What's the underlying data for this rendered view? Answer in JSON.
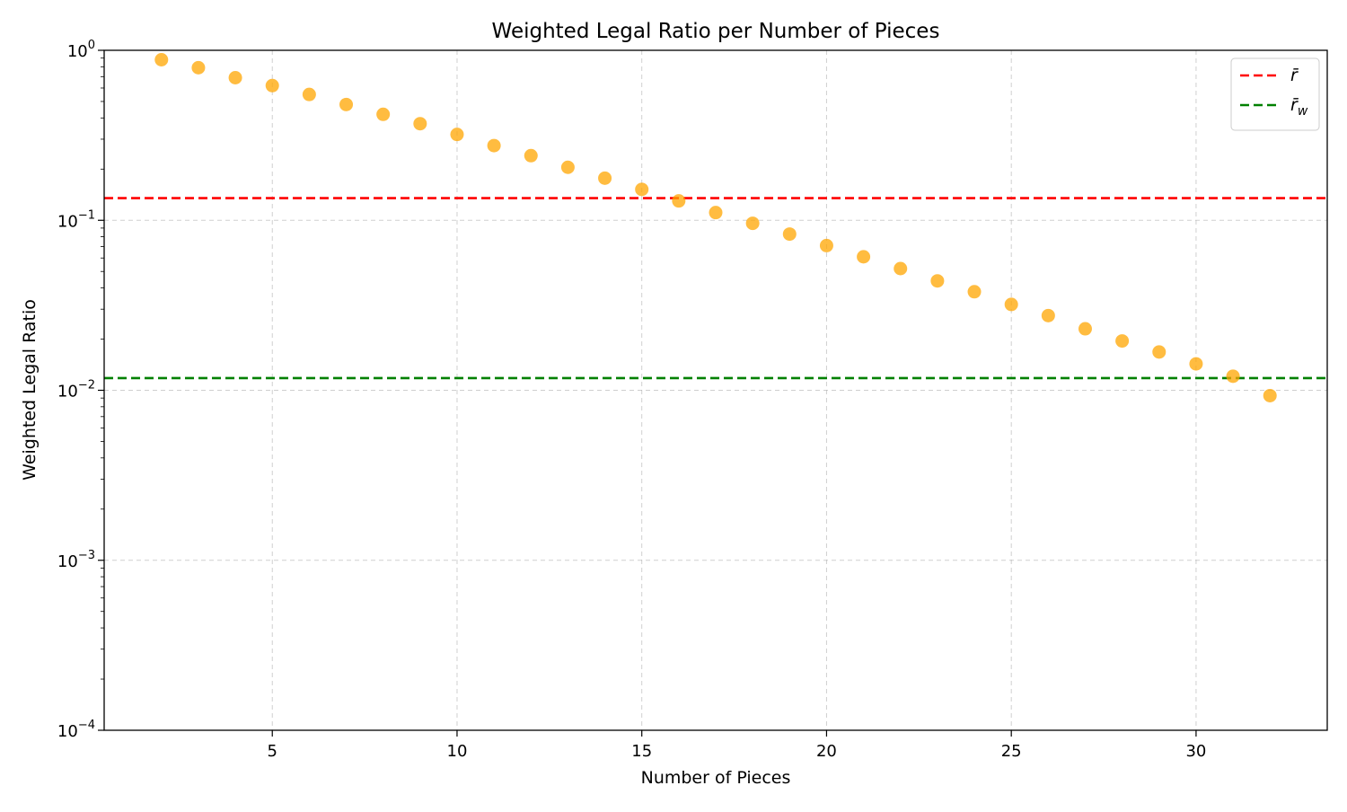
{
  "chart_data": {
    "type": "scatter",
    "title": "Weighted Legal Ratio per Number of Pieces",
    "xlabel": "Number of Pieces",
    "ylabel": "Weighted Legal Ratio",
    "x_scale": "linear",
    "y_scale": "log",
    "xlim": [
      0.45,
      33.55
    ],
    "ylim": [
      0.0001,
      1
    ],
    "x_ticks": [
      5,
      10,
      15,
      20,
      25,
      30
    ],
    "y_ticks": [
      {
        "value": 0.0001,
        "base": "10",
        "exp": "−4"
      },
      {
        "value": 0.001,
        "base": "10",
        "exp": "−3"
      },
      {
        "value": 0.01,
        "base": "10",
        "exp": "−2"
      },
      {
        "value": 0.1,
        "base": "10",
        "exp": "−1"
      },
      {
        "value": 1,
        "base": "10",
        "exp": "0"
      }
    ],
    "grid": true,
    "legend_position": "top-right",
    "point_color": "#ffa500",
    "points": [
      {
        "x": 2,
        "y": 0.88
      },
      {
        "x": 3,
        "y": 0.79
      },
      {
        "x": 4,
        "y": 0.69
      },
      {
        "x": 5,
        "y": 0.62
      },
      {
        "x": 6,
        "y": 0.55
      },
      {
        "x": 7,
        "y": 0.48
      },
      {
        "x": 8,
        "y": 0.42
      },
      {
        "x": 9,
        "y": 0.37
      },
      {
        "x": 10,
        "y": 0.32
      },
      {
        "x": 11,
        "y": 0.275
      },
      {
        "x": 12,
        "y": 0.24
      },
      {
        "x": 13,
        "y": 0.205
      },
      {
        "x": 14,
        "y": 0.177
      },
      {
        "x": 15,
        "y": 0.152
      },
      {
        "x": 16,
        "y": 0.13
      },
      {
        "x": 17,
        "y": 0.111
      },
      {
        "x": 18,
        "y": 0.096
      },
      {
        "x": 19,
        "y": 0.083
      },
      {
        "x": 20,
        "y": 0.071
      },
      {
        "x": 21,
        "y": 0.061
      },
      {
        "x": 22,
        "y": 0.052
      },
      {
        "x": 23,
        "y": 0.044
      },
      {
        "x": 24,
        "y": 0.038
      },
      {
        "x": 25,
        "y": 0.032
      },
      {
        "x": 26,
        "y": 0.0275
      },
      {
        "x": 27,
        "y": 0.023
      },
      {
        "x": 28,
        "y": 0.0195
      },
      {
        "x": 29,
        "y": 0.0168
      },
      {
        "x": 30,
        "y": 0.0143
      },
      {
        "x": 31,
        "y": 0.0121
      },
      {
        "x": 32,
        "y": 0.0093
      }
    ],
    "reference_lines": [
      {
        "label_main": "r̄",
        "label_sub": "",
        "y": 0.135,
        "color": "#ff0000",
        "style": "dashed"
      },
      {
        "label_main": "r̄",
        "label_sub": "w",
        "y": 0.0118,
        "color": "#008000",
        "style": "dashed"
      }
    ]
  }
}
